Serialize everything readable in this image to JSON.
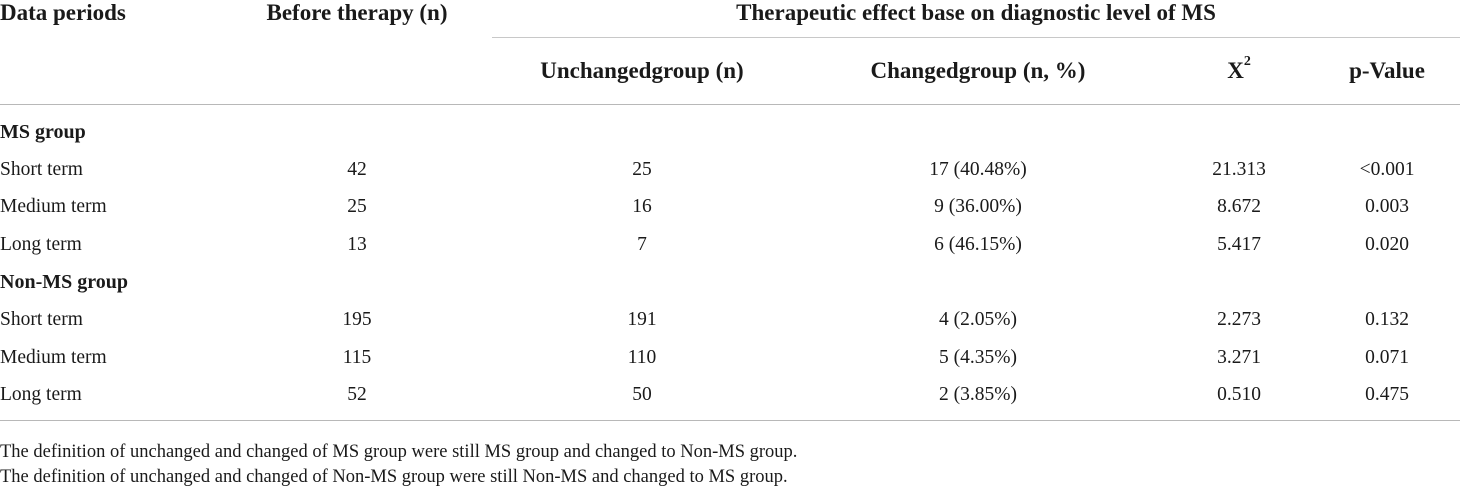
{
  "header": {
    "col_period": "Data periods",
    "col_before": "Before therapy (n)",
    "group_title": "Therapeutic effect base on diagnostic level of MS",
    "col_unchanged": "Unchangedgroup (n)",
    "col_changed": "Changedgroup (n, %)",
    "col_chi_base": "X",
    "col_chi_sup": "2",
    "col_p": "p-Value"
  },
  "groups": [
    {
      "name": "MS group",
      "rows": [
        {
          "period": "Short term",
          "before": "42",
          "unchanged": "25",
          "changed": "17 (40.48%)",
          "chi": "21.313",
          "p": "<0.001"
        },
        {
          "period": "Medium term",
          "before": "25",
          "unchanged": "16",
          "changed": "9 (36.00%)",
          "chi": "8.672",
          "p": "0.003"
        },
        {
          "period": "Long term",
          "before": "13",
          "unchanged": "7",
          "changed": "6 (46.15%)",
          "chi": "5.417",
          "p": "0.020"
        }
      ]
    },
    {
      "name": "Non-MS group",
      "rows": [
        {
          "period": "Short term",
          "before": "195",
          "unchanged": "191",
          "changed": "4 (2.05%)",
          "chi": "2.273",
          "p": "0.132"
        },
        {
          "period": "Medium term",
          "before": "115",
          "unchanged": "110",
          "changed": "5 (4.35%)",
          "chi": "3.271",
          "p": "0.071"
        },
        {
          "period": "Long term",
          "before": "52",
          "unchanged": "50",
          "changed": "2 (3.85%)",
          "chi": "0.510",
          "p": "0.475"
        }
      ]
    }
  ],
  "notes": [
    "The definition of unchanged and changed of MS group were still MS group and changed to Non-MS group.",
    "The definition of unchanged and changed of Non-MS group were still Non-MS and changed to MS group."
  ]
}
